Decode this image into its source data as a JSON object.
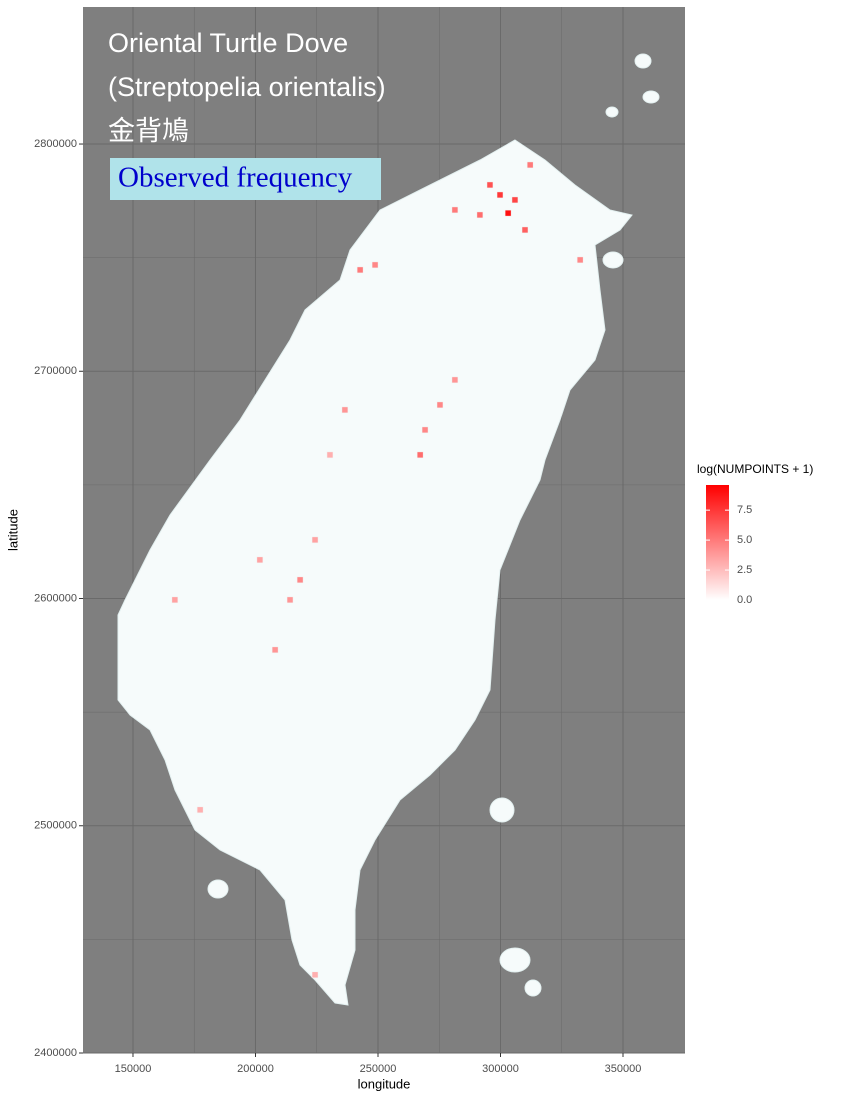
{
  "chart_data": {
    "type": "heatmap",
    "title_lines": [
      "Oriental Turtle Dove",
      "(Streptopelia orientalis)",
      "金背鳩"
    ],
    "subtitle": "Observed frequency",
    "x_label": "longitude",
    "y_label": "latitude",
    "xlim": [
      129600,
      375300
    ],
    "ylim": [
      2400000,
      2860300
    ],
    "xticks": [
      150000,
      200000,
      250000,
      300000,
      350000
    ],
    "yticks": [
      2400000,
      2500000,
      2600000,
      2700000,
      2800000
    ],
    "grid": true,
    "legend_title": "log(NUMPOINTS + 1)",
    "color_lim": [
      0,
      9.6
    ],
    "color_low": "#ffffff",
    "color_high": "#ff0000",
    "legend_ticks": [
      {
        "value": 0,
        "label": "0.0"
      },
      {
        "value": 2.5,
        "label": "2.5"
      },
      {
        "value": 5,
        "label": "5.0"
      },
      {
        "value": 7.5,
        "label": "7.5"
      }
    ],
    "cells": {
      "x": [
        303100,
        299800,
        305900,
        295700,
        310000,
        291600,
        281400,
        242700,
        248800,
        267200,
        269200,
        275300,
        236500,
        218200,
        214100,
        208000,
        224300,
        201800,
        332500,
        312100,
        177400,
        224300,
        167100,
        281400,
        230400
      ],
      "y": [
        2769600,
        2777600,
        2775400,
        2782000,
        2762200,
        2768800,
        2771000,
        2744600,
        2746800,
        2663200,
        2674200,
        2685200,
        2683000,
        2608200,
        2599400,
        2577400,
        2625800,
        2617000,
        2749000,
        2790800,
        2507000,
        2434400,
        2599400,
        2696200,
        2663200
      ],
      "values": [
        9,
        7.5,
        7,
        6.5,
        6,
        5.5,
        5,
        5,
        4.5,
        5.5,
        4.5,
        4.5,
        4,
        4.5,
        4,
        4,
        3.5,
        3.5,
        4.5,
        5,
        3,
        3,
        3.5,
        4,
        3
      ]
    }
  }
}
